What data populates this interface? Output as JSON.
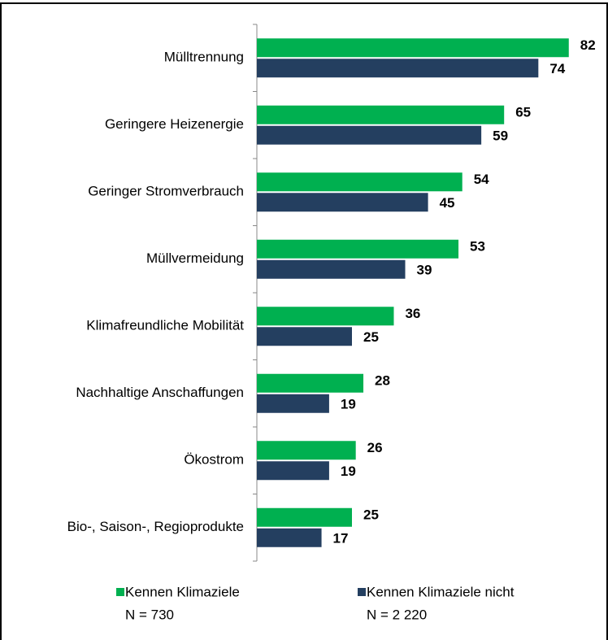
{
  "chart_data": {
    "type": "barh",
    "categories": [
      "Mülltrennung",
      "Geringere Heizenergie",
      "Geringer Stromverbrauch",
      "Müllvermeidung",
      "Klimafreundliche Mobilität",
      "Nachhaltige Anschaffungen",
      "Ökostrom",
      "Bio-, Saison-, Regioprodukte"
    ],
    "series": [
      {
        "name": "Kennen Klimaziele",
        "note": "N = 730",
        "color": "#00b050",
        "values": [
          82,
          65,
          54,
          53,
          36,
          28,
          26,
          25
        ]
      },
      {
        "name": "Kennen Klimaziele nicht",
        "note": "N = 2 220",
        "color": "#243f60",
        "values": [
          74,
          59,
          45,
          39,
          25,
          19,
          19,
          17
        ]
      }
    ]
  }
}
